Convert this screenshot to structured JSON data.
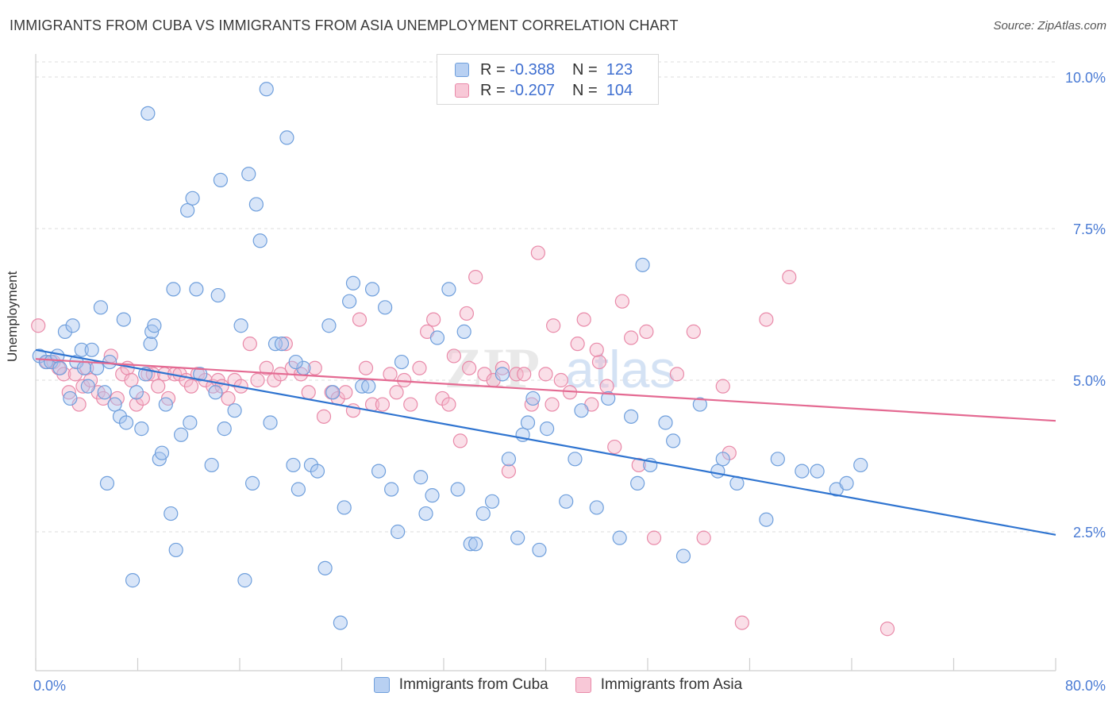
{
  "header": {
    "title": "IMMIGRANTS FROM CUBA VS IMMIGRANTS FROM ASIA UNEMPLOYMENT CORRELATION CHART",
    "source": "Source: ZipAtlas.com"
  },
  "legend": {
    "r_label": "R =",
    "n_label": "N =",
    "cuba": {
      "r": "-0.388",
      "n": "123"
    },
    "asia": {
      "r": "-0.207",
      "n": "104"
    }
  },
  "watermark": {
    "zip": "ZIP",
    "atlas": "atlas"
  },
  "chart_data": {
    "type": "scatter",
    "title": "IMMIGRANTS FROM CUBA VS IMMIGRANTS FROM ASIA UNEMPLOYMENT CORRELATION CHART",
    "xlabel": "",
    "ylabel": "Unemployment",
    "xlim": [
      0,
      80
    ],
    "ylim": [
      0,
      10.5
    ],
    "x_tick_labels": [
      "0.0%",
      "80.0%"
    ],
    "y_ticks": [
      2.5,
      5.0,
      7.5,
      10.0
    ],
    "y_tick_labels": [
      "2.5%",
      "5.0%",
      "7.5%",
      "10.0%"
    ],
    "colors": {
      "cuba_fill": "#a9c6ef",
      "cuba_stroke": "#6f9fdc",
      "cuba_line": "#2f74d0",
      "asia_fill": "#f4b8cb",
      "asia_stroke": "#e98aa9",
      "asia_line": "#e46a92"
    },
    "series": [
      {
        "name": "Immigrants from Cuba",
        "trend": {
          "x": [
            0,
            80
          ],
          "y": [
            5.5,
            2.45
          ]
        },
        "points": [
          [
            0.3,
            5.4
          ],
          [
            0.8,
            5.3
          ],
          [
            1.2,
            5.3
          ],
          [
            1.7,
            5.4
          ],
          [
            1.9,
            5.2
          ],
          [
            2.3,
            5.8
          ],
          [
            2.7,
            4.7
          ],
          [
            2.9,
            5.9
          ],
          [
            3.2,
            5.3
          ],
          [
            3.6,
            5.5
          ],
          [
            3.8,
            5.2
          ],
          [
            4.1,
            4.9
          ],
          [
            4.4,
            5.5
          ],
          [
            4.8,
            5.2
          ],
          [
            5.1,
            6.2
          ],
          [
            5.4,
            4.8
          ],
          [
            5.6,
            3.3
          ],
          [
            5.8,
            5.3
          ],
          [
            6.2,
            4.6
          ],
          [
            6.6,
            4.4
          ],
          [
            6.9,
            6.0
          ],
          [
            7.1,
            4.3
          ],
          [
            7.6,
            1.7
          ],
          [
            7.9,
            4.8
          ],
          [
            8.3,
            4.2
          ],
          [
            8.6,
            5.1
          ],
          [
            9.0,
            5.6
          ],
          [
            9.1,
            5.8
          ],
          [
            9.3,
            5.9
          ],
          [
            9.7,
            3.7
          ],
          [
            9.9,
            3.8
          ],
          [
            10.2,
            4.6
          ],
          [
            10.6,
            2.8
          ],
          [
            10.8,
            6.5
          ],
          [
            11.0,
            2.2
          ],
          [
            11.4,
            4.1
          ],
          [
            11.9,
            7.8
          ],
          [
            12.3,
            8.0
          ],
          [
            12.6,
            6.5
          ],
          [
            12.9,
            5.1
          ],
          [
            13.8,
            3.6
          ],
          [
            14.3,
            6.4
          ],
          [
            14.5,
            8.3
          ],
          [
            14.8,
            4.2
          ],
          [
            15.6,
            4.5
          ],
          [
            16.1,
            5.9
          ],
          [
            16.4,
            1.7
          ],
          [
            16.7,
            8.4
          ],
          [
            17.0,
            3.3
          ],
          [
            17.3,
            7.9
          ],
          [
            17.6,
            7.3
          ],
          [
            18.1,
            9.8
          ],
          [
            18.4,
            4.3
          ],
          [
            18.8,
            5.6
          ],
          [
            19.3,
            5.6
          ],
          [
            19.7,
            9.0
          ],
          [
            20.2,
            3.6
          ],
          [
            20.6,
            3.2
          ],
          [
            21.0,
            5.2
          ],
          [
            21.6,
            3.6
          ],
          [
            22.1,
            3.5
          ],
          [
            22.7,
            1.9
          ],
          [
            23.0,
            5.9
          ],
          [
            23.3,
            4.8
          ],
          [
            23.9,
            1.0
          ],
          [
            24.2,
            2.9
          ],
          [
            24.6,
            6.3
          ],
          [
            24.9,
            6.6
          ],
          [
            25.6,
            4.9
          ],
          [
            26.4,
            6.5
          ],
          [
            26.9,
            3.5
          ],
          [
            27.4,
            6.2
          ],
          [
            27.9,
            3.2
          ],
          [
            28.4,
            2.5
          ],
          [
            28.7,
            5.3
          ],
          [
            30.2,
            3.4
          ],
          [
            30.6,
            2.8
          ],
          [
            31.1,
            3.1
          ],
          [
            31.5,
            5.7
          ],
          [
            32.4,
            6.5
          ],
          [
            33.1,
            3.2
          ],
          [
            33.6,
            5.8
          ],
          [
            34.1,
            2.3
          ],
          [
            34.5,
            2.3
          ],
          [
            35.1,
            2.8
          ],
          [
            35.8,
            3.0
          ],
          [
            36.6,
            5.1
          ],
          [
            37.1,
            3.7
          ],
          [
            37.8,
            2.4
          ],
          [
            38.2,
            4.1
          ],
          [
            39.0,
            4.7
          ],
          [
            39.5,
            2.2
          ],
          [
            40.1,
            4.2
          ],
          [
            41.6,
            3.0
          ],
          [
            42.3,
            3.7
          ],
          [
            42.8,
            4.5
          ],
          [
            44.0,
            2.9
          ],
          [
            45.8,
            2.4
          ],
          [
            46.7,
            4.4
          ],
          [
            47.2,
            3.3
          ],
          [
            47.6,
            6.9
          ],
          [
            48.2,
            3.6
          ],
          [
            50.0,
            4.0
          ],
          [
            50.8,
            2.1
          ],
          [
            52.1,
            4.6
          ],
          [
            53.5,
            3.5
          ],
          [
            53.9,
            3.7
          ],
          [
            55.0,
            3.3
          ],
          [
            57.3,
            2.7
          ],
          [
            58.2,
            3.7
          ],
          [
            60.1,
            3.5
          ],
          [
            61.3,
            3.5
          ],
          [
            62.8,
            3.2
          ],
          [
            63.6,
            3.3
          ],
          [
            64.7,
            3.6
          ],
          [
            8.8,
            9.4
          ],
          [
            12.1,
            4.3
          ],
          [
            14.1,
            4.8
          ],
          [
            20.4,
            5.3
          ],
          [
            26.1,
            4.9
          ],
          [
            38.6,
            4.3
          ],
          [
            44.9,
            4.7
          ],
          [
            49.4,
            4.3
          ]
        ]
      },
      {
        "name": "Immigrants from Asia",
        "trend": {
          "x": [
            0,
            80
          ],
          "y": [
            5.35,
            4.33
          ]
        },
        "points": [
          [
            0.2,
            5.9
          ],
          [
            0.9,
            5.3
          ],
          [
            1.4,
            5.3
          ],
          [
            1.8,
            5.2
          ],
          [
            2.2,
            5.1
          ],
          [
            2.6,
            4.8
          ],
          [
            3.1,
            5.1
          ],
          [
            3.4,
            4.6
          ],
          [
            3.7,
            4.9
          ],
          [
            4.0,
            5.2
          ],
          [
            4.3,
            5.0
          ],
          [
            4.9,
            4.8
          ],
          [
            5.3,
            4.7
          ],
          [
            5.9,
            5.4
          ],
          [
            6.4,
            4.7
          ],
          [
            6.8,
            5.1
          ],
          [
            7.2,
            5.2
          ],
          [
            7.5,
            5.0
          ],
          [
            7.9,
            4.6
          ],
          [
            8.4,
            4.7
          ],
          [
            8.8,
            5.1
          ],
          [
            9.2,
            5.1
          ],
          [
            9.6,
            4.9
          ],
          [
            10.1,
            5.1
          ],
          [
            10.4,
            4.7
          ],
          [
            10.9,
            5.1
          ],
          [
            11.3,
            5.1
          ],
          [
            11.8,
            5.0
          ],
          [
            12.2,
            4.9
          ],
          [
            12.7,
            5.1
          ],
          [
            13.3,
            5.0
          ],
          [
            13.9,
            4.9
          ],
          [
            14.3,
            5.0
          ],
          [
            14.6,
            4.9
          ],
          [
            15.1,
            4.7
          ],
          [
            15.6,
            5.0
          ],
          [
            16.1,
            4.9
          ],
          [
            16.8,
            5.6
          ],
          [
            17.4,
            5.0
          ],
          [
            18.1,
            5.2
          ],
          [
            18.7,
            5.0
          ],
          [
            19.2,
            5.1
          ],
          [
            19.6,
            5.6
          ],
          [
            20.1,
            5.2
          ],
          [
            20.8,
            5.1
          ],
          [
            21.4,
            4.8
          ],
          [
            21.9,
            5.2
          ],
          [
            22.6,
            4.4
          ],
          [
            23.2,
            4.8
          ],
          [
            23.7,
            4.7
          ],
          [
            24.3,
            4.8
          ],
          [
            24.9,
            4.5
          ],
          [
            25.4,
            6.0
          ],
          [
            25.9,
            5.2
          ],
          [
            26.4,
            4.6
          ],
          [
            27.2,
            4.6
          ],
          [
            27.8,
            5.1
          ],
          [
            28.3,
            4.8
          ],
          [
            28.9,
            5.0
          ],
          [
            29.4,
            4.6
          ],
          [
            30.1,
            5.2
          ],
          [
            30.7,
            5.8
          ],
          [
            31.2,
            6.0
          ],
          [
            31.9,
            4.7
          ],
          [
            32.4,
            4.6
          ],
          [
            32.8,
            5.4
          ],
          [
            33.3,
            4.0
          ],
          [
            34.0,
            5.2
          ],
          [
            34.5,
            6.7
          ],
          [
            35.2,
            5.1
          ],
          [
            35.9,
            5.0
          ],
          [
            36.6,
            5.2
          ],
          [
            37.1,
            3.5
          ],
          [
            37.7,
            5.1
          ],
          [
            38.3,
            5.1
          ],
          [
            38.9,
            4.6
          ],
          [
            39.4,
            7.1
          ],
          [
            40.0,
            5.1
          ],
          [
            40.6,
            5.9
          ],
          [
            41.2,
            5.0
          ],
          [
            41.9,
            4.8
          ],
          [
            42.5,
            5.6
          ],
          [
            43.0,
            6.0
          ],
          [
            43.6,
            4.6
          ],
          [
            44.2,
            5.3
          ],
          [
            44.8,
            4.9
          ],
          [
            45.4,
            3.9
          ],
          [
            46.0,
            6.3
          ],
          [
            46.7,
            5.7
          ],
          [
            47.3,
            3.6
          ],
          [
            47.9,
            5.8
          ],
          [
            48.5,
            2.4
          ],
          [
            50.3,
            5.1
          ],
          [
            51.6,
            5.8
          ],
          [
            52.4,
            2.4
          ],
          [
            53.9,
            4.9
          ],
          [
            54.4,
            3.8
          ],
          [
            55.4,
            1.0
          ],
          [
            57.3,
            6.0
          ],
          [
            59.1,
            6.7
          ],
          [
            33.8,
            6.1
          ],
          [
            40.5,
            4.6
          ],
          [
            44.0,
            5.5
          ],
          [
            66.8,
            0.9
          ]
        ]
      }
    ]
  },
  "bottom_legend": {
    "cuba": "Immigrants from Cuba",
    "asia": "Immigrants from Asia"
  }
}
